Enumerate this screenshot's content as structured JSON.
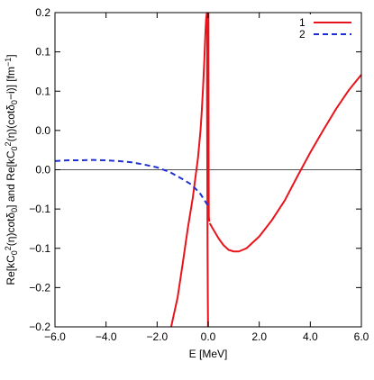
{
  "chart_data": {
    "type": "line",
    "xlabel": "E [MeV]",
    "ylabel": "Re[kC",
    "ylabel_parts": [
      "Re[kC",
      "0",
      "2",
      "(η)cotδ",
      "0",
      "] and Re[kC",
      "0",
      "2",
      "(η)(cotδ",
      "0",
      "−i)] [fm",
      "−1",
      "]"
    ],
    "xlim": [
      -6.0,
      6.0
    ],
    "ylim": [
      -0.2,
      0.2
    ],
    "x_ticks": [
      -6,
      -4,
      -2,
      0,
      2,
      4,
      6
    ],
    "x_tick_labels": [
      "−6.0",
      "−4.0",
      "−2.0",
      "0.0",
      "2.0",
      "4.0",
      "6.0"
    ],
    "y_ticks": [
      -0.2,
      -0.15,
      -0.1,
      -0.05,
      0,
      0.05,
      0.1,
      0.15,
      0.2
    ],
    "y_tick_labels": [
      "−0.2",
      "−0.2",
      "−0.1",
      "−0.1",
      "0.0",
      "0.0",
      "0.1",
      "0.1",
      "0.2"
    ],
    "zero_line": true,
    "grid": false,
    "legend_position": "top-right",
    "series": [
      {
        "name": "1",
        "color": "#e8141c",
        "style": "solid",
        "segments": [
          {
            "x": [
              -1.45,
              -1.2,
              -1.0,
              -0.8,
              -0.6,
              -0.4,
              -0.3,
              -0.25,
              -0.2,
              -0.15,
              -0.12,
              -0.1,
              -0.08,
              -0.06,
              -0.04
            ],
            "y": [
              -0.2,
              -0.163,
              -0.12,
              -0.075,
              -0.035,
              0.015,
              0.05,
              0.075,
              0.105,
              0.14,
              0.165,
              0.18,
              0.192,
              0.198,
              0.2
            ]
          },
          {
            "x": [
              -0.035,
              -0.045,
              -0.035,
              -0.025,
              -0.015,
              -0.005
            ],
            "y": [
              0.2,
              0.1,
              0.0,
              -0.1,
              -0.16,
              -0.2
            ]
          },
          {
            "x": [
              0.01,
              0.015,
              0.02,
              0.025,
              0.035,
              0.045
            ],
            "y": [
              0.2,
              0.1,
              -0.01,
              -0.06,
              -0.063,
              -0.066
            ]
          },
          {
            "x": [
              0.06,
              0.2,
              0.4,
              0.6,
              0.8,
              1.0,
              1.2,
              1.5,
              2.0,
              2.5,
              3.0,
              3.5,
              4.0,
              4.5,
              5.0,
              5.5,
              6.0
            ],
            "y": [
              -0.068,
              -0.076,
              -0.087,
              -0.096,
              -0.102,
              -0.104,
              -0.104,
              -0.1,
              -0.085,
              -0.064,
              -0.039,
              -0.008,
              0.022,
              0.05,
              0.077,
              0.101,
              0.121
            ]
          }
        ]
      },
      {
        "name": "2",
        "color": "#1f2fd6",
        "style": "dashed",
        "segments": [
          {
            "x": [
              -6.0,
              -5.5,
              -5.0,
              -4.5,
              -4.0,
              -3.5,
              -3.0,
              -2.5,
              -2.0,
              -1.5,
              -1.0,
              -0.7,
              -0.5,
              -0.3,
              -0.2,
              -0.1,
              0.0
            ],
            "y": [
              0.011,
              0.012,
              0.012,
              0.0125,
              0.012,
              0.011,
              0.0095,
              0.0065,
              0.003,
              -0.003,
              -0.012,
              -0.018,
              -0.024,
              -0.031,
              -0.036,
              -0.041,
              -0.046
            ]
          }
        ]
      }
    ]
  }
}
